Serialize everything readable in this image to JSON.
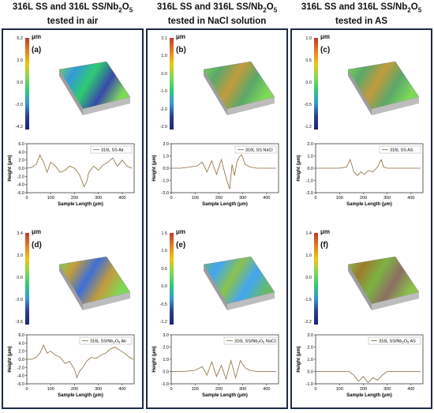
{
  "columns": [
    {
      "id": "air",
      "line1": "316L SS and 316L SS/Nb",
      "sub": "2",
      "line1_end": "O",
      "sub2": "5",
      "line2": "tested in air"
    },
    {
      "id": "nacl",
      "line1": "316L SS and 316L SS/Nb",
      "sub": "2",
      "line1_end": "O",
      "sub2": "5",
      "line2": "tested in NaCl solution"
    },
    {
      "id": "as",
      "line1": "316L SS and 316L SS/Nb",
      "sub": "2",
      "line1_end": "O",
      "sub2": "5",
      "line2": "tested in AS"
    }
  ],
  "unit_label": "μm",
  "y_axis_title": "Height (μm)",
  "x_axis_title": "Sample Length (μm)",
  "panels": {
    "a": {
      "letter": "(a)",
      "cbar_ticks": [
        "5.2",
        "2.0",
        "0.0",
        "-2.0",
        "-4.2"
      ],
      "legend": "316L SS Air"
    },
    "b": {
      "letter": "(b)",
      "cbar_ticks": [
        "2.1",
        "1.0",
        "0.0",
        "-1.0",
        "-2.0",
        "-2.9"
      ],
      "legend": "316L SS NaCl"
    },
    "c": {
      "letter": "(c)",
      "cbar_ticks": [
        "1.0",
        "0.5",
        "0.0",
        "-0.5",
        "-1.2"
      ],
      "legend": "316L SS AS"
    },
    "d": {
      "letter": "(d)",
      "cbar_ticks": [
        "3.4",
        "2.0",
        "0.0",
        "-2.0",
        "-3.6"
      ],
      "legend_pre": "316L SS/Nb",
      "legend_sub1": "2",
      "legend_mid": "O",
      "legend_sub2": "5",
      "legend_post": " Air"
    },
    "e": {
      "letter": "(e)",
      "cbar_ticks": [
        "1.5",
        "1.0",
        "0.5",
        "0.0",
        "-0.5",
        "-1.2"
      ],
      "legend_pre": "316L SS/Nb",
      "legend_sub1": "2",
      "legend_mid": "O",
      "legend_sub2": "5",
      "legend_post": " NaCl"
    },
    "f": {
      "letter": "(f)",
      "cbar_ticks": [
        "1.4",
        "1.0",
        "0.0",
        "-1.5",
        "-2.2"
      ],
      "legend_pre": "316L SS/Nb",
      "legend_sub1": "2",
      "legend_mid": "O",
      "legend_sub2": "5",
      "legend_post": " AS"
    }
  },
  "chart_data": [
    {
      "type": "line",
      "panel": "a",
      "series": [
        {
          "name": "316L SS Air"
        }
      ],
      "ylim": [
        -6,
        6
      ],
      "yticks": [
        "6.0",
        "4.0",
        "2.0",
        "0.0",
        "-2.0",
        "-4.0",
        "-6.0"
      ],
      "xlim": [
        0,
        450
      ],
      "xticks": [
        "0",
        "100",
        "200",
        "300",
        "400"
      ],
      "x": [
        0,
        20,
        40,
        55,
        70,
        85,
        100,
        120,
        140,
        160,
        180,
        200,
        220,
        240,
        250,
        260,
        280,
        300,
        320,
        340,
        360,
        380,
        400,
        420,
        440
      ],
      "y": [
        0,
        0.2,
        1.0,
        3.2,
        1.5,
        -1.0,
        1.5,
        0.5,
        -1.0,
        -0.5,
        0.5,
        0,
        -1.5,
        -4.5,
        -3.5,
        -1.0,
        0.5,
        -0.5,
        0.8,
        1.5,
        2.5,
        0.5,
        2.0,
        0.5,
        0
      ]
    },
    {
      "type": "line",
      "panel": "b",
      "series": [
        {
          "name": "316L SS NaCl"
        }
      ],
      "ylim": [
        -2,
        2
      ],
      "yticks": [
        "2.0",
        "1.0",
        "0.0",
        "-1.0",
        "-2.0"
      ],
      "xlim": [
        0,
        450
      ],
      "xticks": [
        "0",
        "100",
        "200",
        "300",
        "400"
      ],
      "x": [
        0,
        40,
        80,
        110,
        130,
        150,
        170,
        190,
        210,
        230,
        245,
        255,
        265,
        275,
        285,
        295,
        310,
        330,
        360,
        400,
        440
      ],
      "y": [
        0,
        0,
        0.1,
        0.2,
        0.5,
        -0.3,
        0.6,
        -0.5,
        0.7,
        -0.8,
        -1.7,
        0.3,
        -0.6,
        0.5,
        0.9,
        1.1,
        0.3,
        0.1,
        0,
        0,
        0
      ]
    },
    {
      "type": "line",
      "panel": "c",
      "series": [
        {
          "name": "316L SS AS"
        }
      ],
      "ylim": [
        -2,
        2
      ],
      "yticks": [
        "2.0",
        "1.0",
        "0.0",
        "-1.0",
        "-2.0"
      ],
      "xlim": [
        0,
        450
      ],
      "xticks": [
        "0",
        "100",
        "200",
        "300",
        "400"
      ],
      "x": [
        0,
        50,
        100,
        130,
        145,
        160,
        175,
        190,
        205,
        220,
        240,
        260,
        275,
        285,
        300,
        340,
        400,
        440
      ],
      "y": [
        0,
        0,
        0,
        0.1,
        0.7,
        -0.3,
        -0.6,
        -0.3,
        -0.5,
        -0.2,
        -0.3,
        0.1,
        0.7,
        0.1,
        0,
        0,
        0,
        0
      ]
    },
    {
      "type": "line",
      "panel": "d",
      "series": [
        {
          "name": "316L SS/Nb2O5 Air"
        }
      ],
      "ylim": [
        -6,
        6
      ],
      "yticks": [
        "6.0",
        "4.0",
        "2.0",
        "0.0",
        "-2.0",
        "-4.0",
        "-6.0"
      ],
      "xlim": [
        0,
        450
      ],
      "xticks": [
        "0",
        "100",
        "200",
        "300",
        "400"
      ],
      "x": [
        0,
        20,
        40,
        55,
        70,
        85,
        100,
        120,
        140,
        160,
        180,
        200,
        210,
        220,
        235,
        250,
        270,
        290,
        310,
        330,
        350,
        370,
        390,
        410,
        430,
        445
      ],
      "y": [
        0,
        0,
        0.5,
        1.5,
        3.5,
        1.5,
        2.0,
        1.0,
        0.5,
        -1.0,
        -0.5,
        -2.5,
        -4.5,
        -3.0,
        -2.0,
        -0.5,
        0.5,
        0.2,
        1.0,
        1.5,
        2.5,
        3.0,
        2.2,
        1.5,
        0.5,
        0
      ]
    },
    {
      "type": "line",
      "panel": "e",
      "series": [
        {
          "name": "316L SS/Nb2O5 NaCl"
        }
      ],
      "ylim": [
        -1,
        3
      ],
      "yticks": [
        "3.0",
        "2.0",
        "1.0",
        "0.0",
        "-1.0"
      ],
      "xlim": [
        0,
        450
      ],
      "xticks": [
        "0",
        "100",
        "200",
        "300",
        "400"
      ],
      "x": [
        0,
        50,
        100,
        130,
        150,
        170,
        190,
        210,
        230,
        250,
        270,
        290,
        310,
        330,
        360,
        400,
        440
      ],
      "y": [
        0,
        0,
        0.1,
        0.4,
        -0.3,
        0.8,
        -0.4,
        0.5,
        -0.6,
        0.9,
        -0.5,
        0.9,
        0.3,
        0.1,
        0,
        0,
        0
      ]
    },
    {
      "type": "line",
      "panel": "f",
      "series": [
        {
          "name": "316L SS/Nb2O5 AS"
        }
      ],
      "ylim": [
        -1,
        3
      ],
      "yticks": [
        "3.0",
        "2.0",
        "1.0",
        "0.0",
        "-1.0"
      ],
      "xlim": [
        0,
        450
      ],
      "xticks": [
        "0",
        "100",
        "200",
        "300",
        "400"
      ],
      "x": [
        0,
        50,
        100,
        140,
        160,
        180,
        200,
        220,
        240,
        260,
        280,
        300,
        340,
        400,
        440
      ],
      "y": [
        0,
        0,
        0,
        0,
        -0.3,
        -0.8,
        -0.4,
        -0.9,
        -0.5,
        -0.7,
        -0.3,
        0,
        0,
        0,
        0
      ]
    }
  ]
}
